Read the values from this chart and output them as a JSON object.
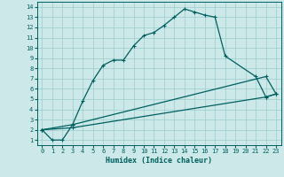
{
  "xlabel": "Humidex (Indice chaleur)",
  "bg_color": "#cce8e8",
  "grid_color": "#99cccc",
  "line_color": "#005f5f",
  "xlim": [
    -0.5,
    23.5
  ],
  "ylim": [
    0.5,
    14.5
  ],
  "xticks": [
    0,
    1,
    2,
    3,
    4,
    5,
    6,
    7,
    8,
    9,
    10,
    11,
    12,
    13,
    14,
    15,
    16,
    17,
    18,
    19,
    20,
    21,
    22,
    23
  ],
  "yticks": [
    1,
    2,
    3,
    4,
    5,
    6,
    7,
    8,
    9,
    10,
    11,
    12,
    13,
    14
  ],
  "curve1_x": [
    0,
    1,
    2,
    3,
    4,
    5,
    6,
    7,
    8,
    9,
    10,
    11,
    12,
    13,
    14,
    15,
    16,
    17,
    18,
    21,
    22,
    23
  ],
  "curve1_y": [
    2,
    1,
    1,
    2.5,
    4.8,
    6.8,
    8.3,
    8.8,
    8.8,
    10.2,
    11.2,
    11.5,
    12.2,
    13.0,
    13.8,
    13.5,
    13.2,
    13.0,
    9.2,
    7.2,
    5.2,
    5.5
  ],
  "curve2_x": [
    0,
    3,
    22,
    23
  ],
  "curve2_y": [
    2,
    2.5,
    7.2,
    5.5
  ],
  "curve3_x": [
    0,
    3,
    22,
    23
  ],
  "curve3_y": [
    2,
    2.2,
    5.2,
    5.5
  ],
  "tick_fontsize": 5,
  "xlabel_fontsize": 6
}
